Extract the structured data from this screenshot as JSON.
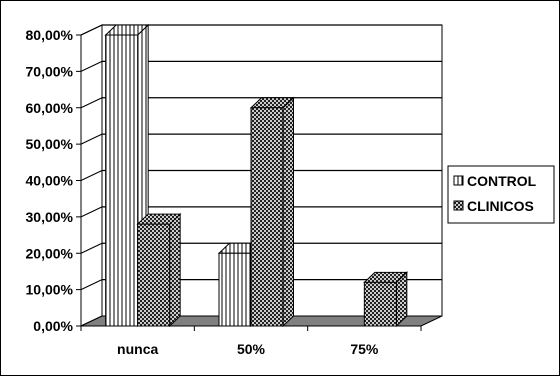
{
  "chart_data": {
    "type": "bar",
    "categories": [
      "nunca",
      "50%",
      "75%"
    ],
    "series": [
      {
        "name": "CONTROL",
        "values": [
          80.0,
          20.0,
          0.0
        ],
        "pattern": "vertical-lines"
      },
      {
        "name": "CLINICOS",
        "values": [
          28.0,
          60.0,
          12.0
        ],
        "pattern": "crosshatch"
      }
    ],
    "ylim": [
      0,
      80
    ],
    "yticks": [
      "0,00%",
      "10,00%",
      "20,00%",
      "30,00%",
      "40,00%",
      "50,00%",
      "60,00%",
      "70,00%",
      "80,00%"
    ],
    "grid": true,
    "three_d": true,
    "legend_position": "right",
    "colors": {
      "wall": "#ffffff",
      "floor": "#808080",
      "bar_fill": "#ffffff",
      "ink": "#000000"
    }
  }
}
